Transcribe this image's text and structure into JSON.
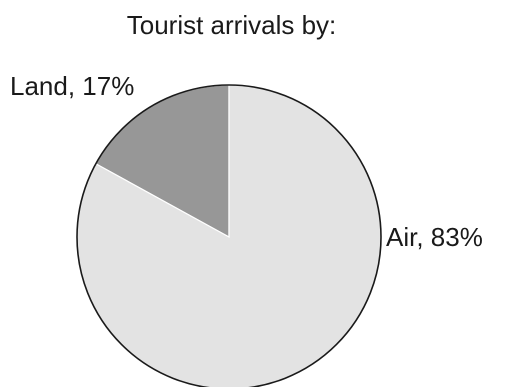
{
  "chart_data": {
    "type": "pie",
    "title": "Tourist arrivals by:",
    "slices": [
      {
        "label": "Land",
        "value": 17,
        "display": "Land, 17%",
        "color": "#979797"
      },
      {
        "label": "Air",
        "value": 83,
        "display": "Air, 83%",
        "color": "#e3e3e3"
      }
    ],
    "outline_color": "#1a1a1a"
  }
}
